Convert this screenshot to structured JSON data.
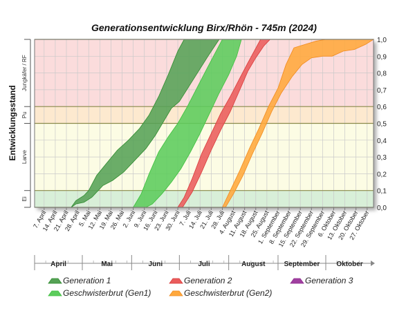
{
  "chart_data": {
    "type": "area",
    "title": "Generationsentwicklung Birx/Rhön - 745m (2024)",
    "ylabel": "Entwicklungsstand",
    "ylim": [
      0,
      1
    ],
    "y_ticks": [
      "0,0",
      "0,1",
      "0,2",
      "0,3",
      "0,4",
      "0,5",
      "0,6",
      "0,7",
      "0,8",
      "0,9",
      "1,0"
    ],
    "x_range": [
      "2024-04-01",
      "2024-10-31"
    ],
    "x_tick_labels": [
      {
        "date": "2024-04-07",
        "label": "7. April"
      },
      {
        "date": "2024-04-14",
        "label": "14. April"
      },
      {
        "date": "2024-04-21",
        "label": "21. April"
      },
      {
        "date": "2024-04-28",
        "label": "28. April"
      },
      {
        "date": "2024-05-05",
        "label": "5. Mai"
      },
      {
        "date": "2024-05-12",
        "label": "12. Mai"
      },
      {
        "date": "2024-05-19",
        "label": "19. Mai"
      },
      {
        "date": "2024-05-26",
        "label": "26. Mai"
      },
      {
        "date": "2024-06-02",
        "label": "2. Juni"
      },
      {
        "date": "2024-06-09",
        "label": "9. Juni"
      },
      {
        "date": "2024-06-16",
        "label": "16. Juni"
      },
      {
        "date": "2024-06-23",
        "label": "23. Juni"
      },
      {
        "date": "2024-06-30",
        "label": "30. Juni"
      },
      {
        "date": "2024-07-07",
        "label": "7. Juli"
      },
      {
        "date": "2024-07-14",
        "label": "14. Juli"
      },
      {
        "date": "2024-07-21",
        "label": "21. Juli"
      },
      {
        "date": "2024-07-28",
        "label": "28. Juli"
      },
      {
        "date": "2024-08-04",
        "label": "4. August"
      },
      {
        "date": "2024-08-11",
        "label": "11. August"
      },
      {
        "date": "2024-08-18",
        "label": "18. August"
      },
      {
        "date": "2024-08-25",
        "label": "25. August"
      },
      {
        "date": "2024-09-01",
        "label": "1. September"
      },
      {
        "date": "2024-09-08",
        "label": "8. September"
      },
      {
        "date": "2024-09-15",
        "label": "15. September"
      },
      {
        "date": "2024-09-22",
        "label": "22. September"
      },
      {
        "date": "2024-09-29",
        "label": "29. September"
      },
      {
        "date": "2024-10-06",
        "label": "6. Oktober"
      },
      {
        "date": "2024-10-13",
        "label": "13. Oktober"
      },
      {
        "date": "2024-10-20",
        "label": "20. Oktober"
      },
      {
        "date": "2024-10-27",
        "label": "27. Oktober"
      }
    ],
    "months": [
      {
        "name": "April",
        "start": "2024-04-01",
        "end": "2024-05-01"
      },
      {
        "name": "Mai",
        "start": "2024-05-01",
        "end": "2024-06-01"
      },
      {
        "name": "Juni",
        "start": "2024-06-01",
        "end": "2024-07-01"
      },
      {
        "name": "Juli",
        "start": "2024-07-01",
        "end": "2024-08-01"
      },
      {
        "name": "August",
        "start": "2024-08-01",
        "end": "2024-09-01"
      },
      {
        "name": "September",
        "start": "2024-09-01",
        "end": "2024-10-01"
      },
      {
        "name": "Oktober",
        "start": "2024-10-01",
        "end": "2024-10-31"
      }
    ],
    "stages": [
      {
        "label": "Ei",
        "from": 0,
        "to": 0.1,
        "color": "#d8efd8"
      },
      {
        "label": "Larve",
        "from": 0.1,
        "to": 0.5,
        "color": "#fcfce4"
      },
      {
        "label": "Pu",
        "from": 0.5,
        "to": 0.6,
        "color": "#fde9cf"
      },
      {
        "label": "Jungkäfer / RF",
        "from": 0.6,
        "to": 1.0,
        "color": "#fbdcdc"
      }
    ],
    "grid": true,
    "legend_position": "bottom",
    "series": [
      {
        "name": "Generation 1",
        "color": "#2e8b2e",
        "fill": "#56a256",
        "upper": [
          [
            "2024-04-24",
            0
          ],
          [
            "2024-04-27",
            0.04
          ],
          [
            "2024-05-02",
            0.07
          ],
          [
            "2024-05-05",
            0.1
          ],
          [
            "2024-05-10",
            0.19
          ],
          [
            "2024-05-16",
            0.26
          ],
          [
            "2024-05-23",
            0.34
          ],
          [
            "2024-05-30",
            0.4
          ],
          [
            "2024-06-06",
            0.47
          ],
          [
            "2024-06-12",
            0.55
          ],
          [
            "2024-06-18",
            0.66
          ],
          [
            "2024-06-24",
            0.79
          ],
          [
            "2024-06-30",
            0.93
          ],
          [
            "2024-07-04",
            1.0
          ]
        ],
        "lower": [
          [
            "2024-04-24",
            0
          ],
          [
            "2024-04-27",
            0.02
          ],
          [
            "2024-05-02",
            0.03
          ],
          [
            "2024-05-07",
            0.06
          ],
          [
            "2024-05-14",
            0.13
          ],
          [
            "2024-05-20",
            0.16
          ],
          [
            "2024-05-27",
            0.21
          ],
          [
            "2024-06-03",
            0.28
          ],
          [
            "2024-06-10",
            0.35
          ],
          [
            "2024-06-16",
            0.43
          ],
          [
            "2024-06-21",
            0.51
          ],
          [
            "2024-06-26",
            0.59
          ],
          [
            "2024-07-01",
            0.63
          ],
          [
            "2024-07-07",
            0.72
          ],
          [
            "2024-07-13",
            0.81
          ],
          [
            "2024-07-19",
            0.9
          ],
          [
            "2024-07-26",
            1.0
          ]
        ]
      },
      {
        "name": "Geschwisterbrut (Gen1)",
        "color": "#3dbf3d",
        "fill": "#5ccc5c",
        "upper": [
          [
            "2024-06-02",
            0
          ],
          [
            "2024-06-07",
            0.08
          ],
          [
            "2024-06-12",
            0.2
          ],
          [
            "2024-06-18",
            0.33
          ],
          [
            "2024-06-24",
            0.42
          ],
          [
            "2024-06-30",
            0.5
          ],
          [
            "2024-07-06",
            0.6
          ],
          [
            "2024-07-12",
            0.71
          ],
          [
            "2024-07-18",
            0.82
          ],
          [
            "2024-07-23",
            0.91
          ],
          [
            "2024-07-28",
            1.0
          ]
        ],
        "lower": [
          [
            "2024-06-02",
            0
          ],
          [
            "2024-06-10",
            0
          ],
          [
            "2024-06-14",
            0.02
          ],
          [
            "2024-06-20",
            0.08
          ],
          [
            "2024-06-26",
            0.15
          ],
          [
            "2024-07-02",
            0.23
          ],
          [
            "2024-07-08",
            0.33
          ],
          [
            "2024-07-14",
            0.44
          ],
          [
            "2024-07-20",
            0.56
          ],
          [
            "2024-07-26",
            0.68
          ],
          [
            "2024-08-01",
            0.79
          ],
          [
            "2024-08-06",
            0.9
          ],
          [
            "2024-08-09",
            1.0
          ]
        ]
      },
      {
        "name": "Generation 2",
        "color": "#d83a3a",
        "fill": "#ea5c5c",
        "upper": [
          [
            "2024-06-30",
            0
          ],
          [
            "2024-07-04",
            0.06
          ],
          [
            "2024-07-09",
            0.17
          ],
          [
            "2024-07-15",
            0.32
          ],
          [
            "2024-07-21",
            0.44
          ],
          [
            "2024-07-27",
            0.56
          ],
          [
            "2024-08-02",
            0.66
          ],
          [
            "2024-08-08",
            0.77
          ],
          [
            "2024-08-13",
            0.86
          ],
          [
            "2024-08-17",
            0.93
          ],
          [
            "2024-08-21",
            1.0
          ]
        ],
        "lower": [
          [
            "2024-06-30",
            0
          ],
          [
            "2024-07-03",
            0
          ],
          [
            "2024-07-09",
            0.09
          ],
          [
            "2024-07-15",
            0.21
          ],
          [
            "2024-07-21",
            0.34
          ],
          [
            "2024-07-27",
            0.46
          ],
          [
            "2024-08-02",
            0.57
          ],
          [
            "2024-08-08",
            0.7
          ],
          [
            "2024-08-13",
            0.81
          ],
          [
            "2024-08-18",
            0.89
          ],
          [
            "2024-08-23",
            0.96
          ],
          [
            "2024-08-27",
            1.0
          ]
        ]
      },
      {
        "name": "Generation 3",
        "color": "#8e2a8e",
        "fill": "#a040a0",
        "upper": [],
        "lower": []
      },
      {
        "name": "Geschwisterbrut (Gen2)",
        "color": "#f08a1e",
        "fill": "#ffa83c",
        "upper": [
          [
            "2024-07-28",
            0
          ],
          [
            "2024-08-02",
            0.1
          ],
          [
            "2024-08-08",
            0.22
          ],
          [
            "2024-08-14",
            0.35
          ],
          [
            "2024-08-20",
            0.47
          ],
          [
            "2024-08-26",
            0.6
          ],
          [
            "2024-09-01",
            0.71
          ],
          [
            "2024-09-06",
            0.85
          ],
          [
            "2024-09-11",
            0.95
          ],
          [
            "2024-09-18",
            0.97
          ],
          [
            "2024-09-25",
            0.99
          ],
          [
            "2024-10-01",
            1.0
          ]
        ],
        "lower": [
          [
            "2024-07-28",
            0
          ],
          [
            "2024-07-30",
            0
          ],
          [
            "2024-08-04",
            0.08
          ],
          [
            "2024-08-10",
            0.19
          ],
          [
            "2024-08-16",
            0.32
          ],
          [
            "2024-08-22",
            0.44
          ],
          [
            "2024-08-28",
            0.57
          ],
          [
            "2024-09-03",
            0.68
          ],
          [
            "2024-09-10",
            0.78
          ],
          [
            "2024-09-16",
            0.85
          ],
          [
            "2024-09-22",
            0.89
          ],
          [
            "2024-09-29",
            0.9
          ],
          [
            "2024-10-05",
            0.9
          ],
          [
            "2024-10-12",
            0.93
          ],
          [
            "2024-10-19",
            0.94
          ],
          [
            "2024-10-26",
            0.97
          ],
          [
            "2024-10-31",
            1.0
          ]
        ]
      }
    ]
  }
}
